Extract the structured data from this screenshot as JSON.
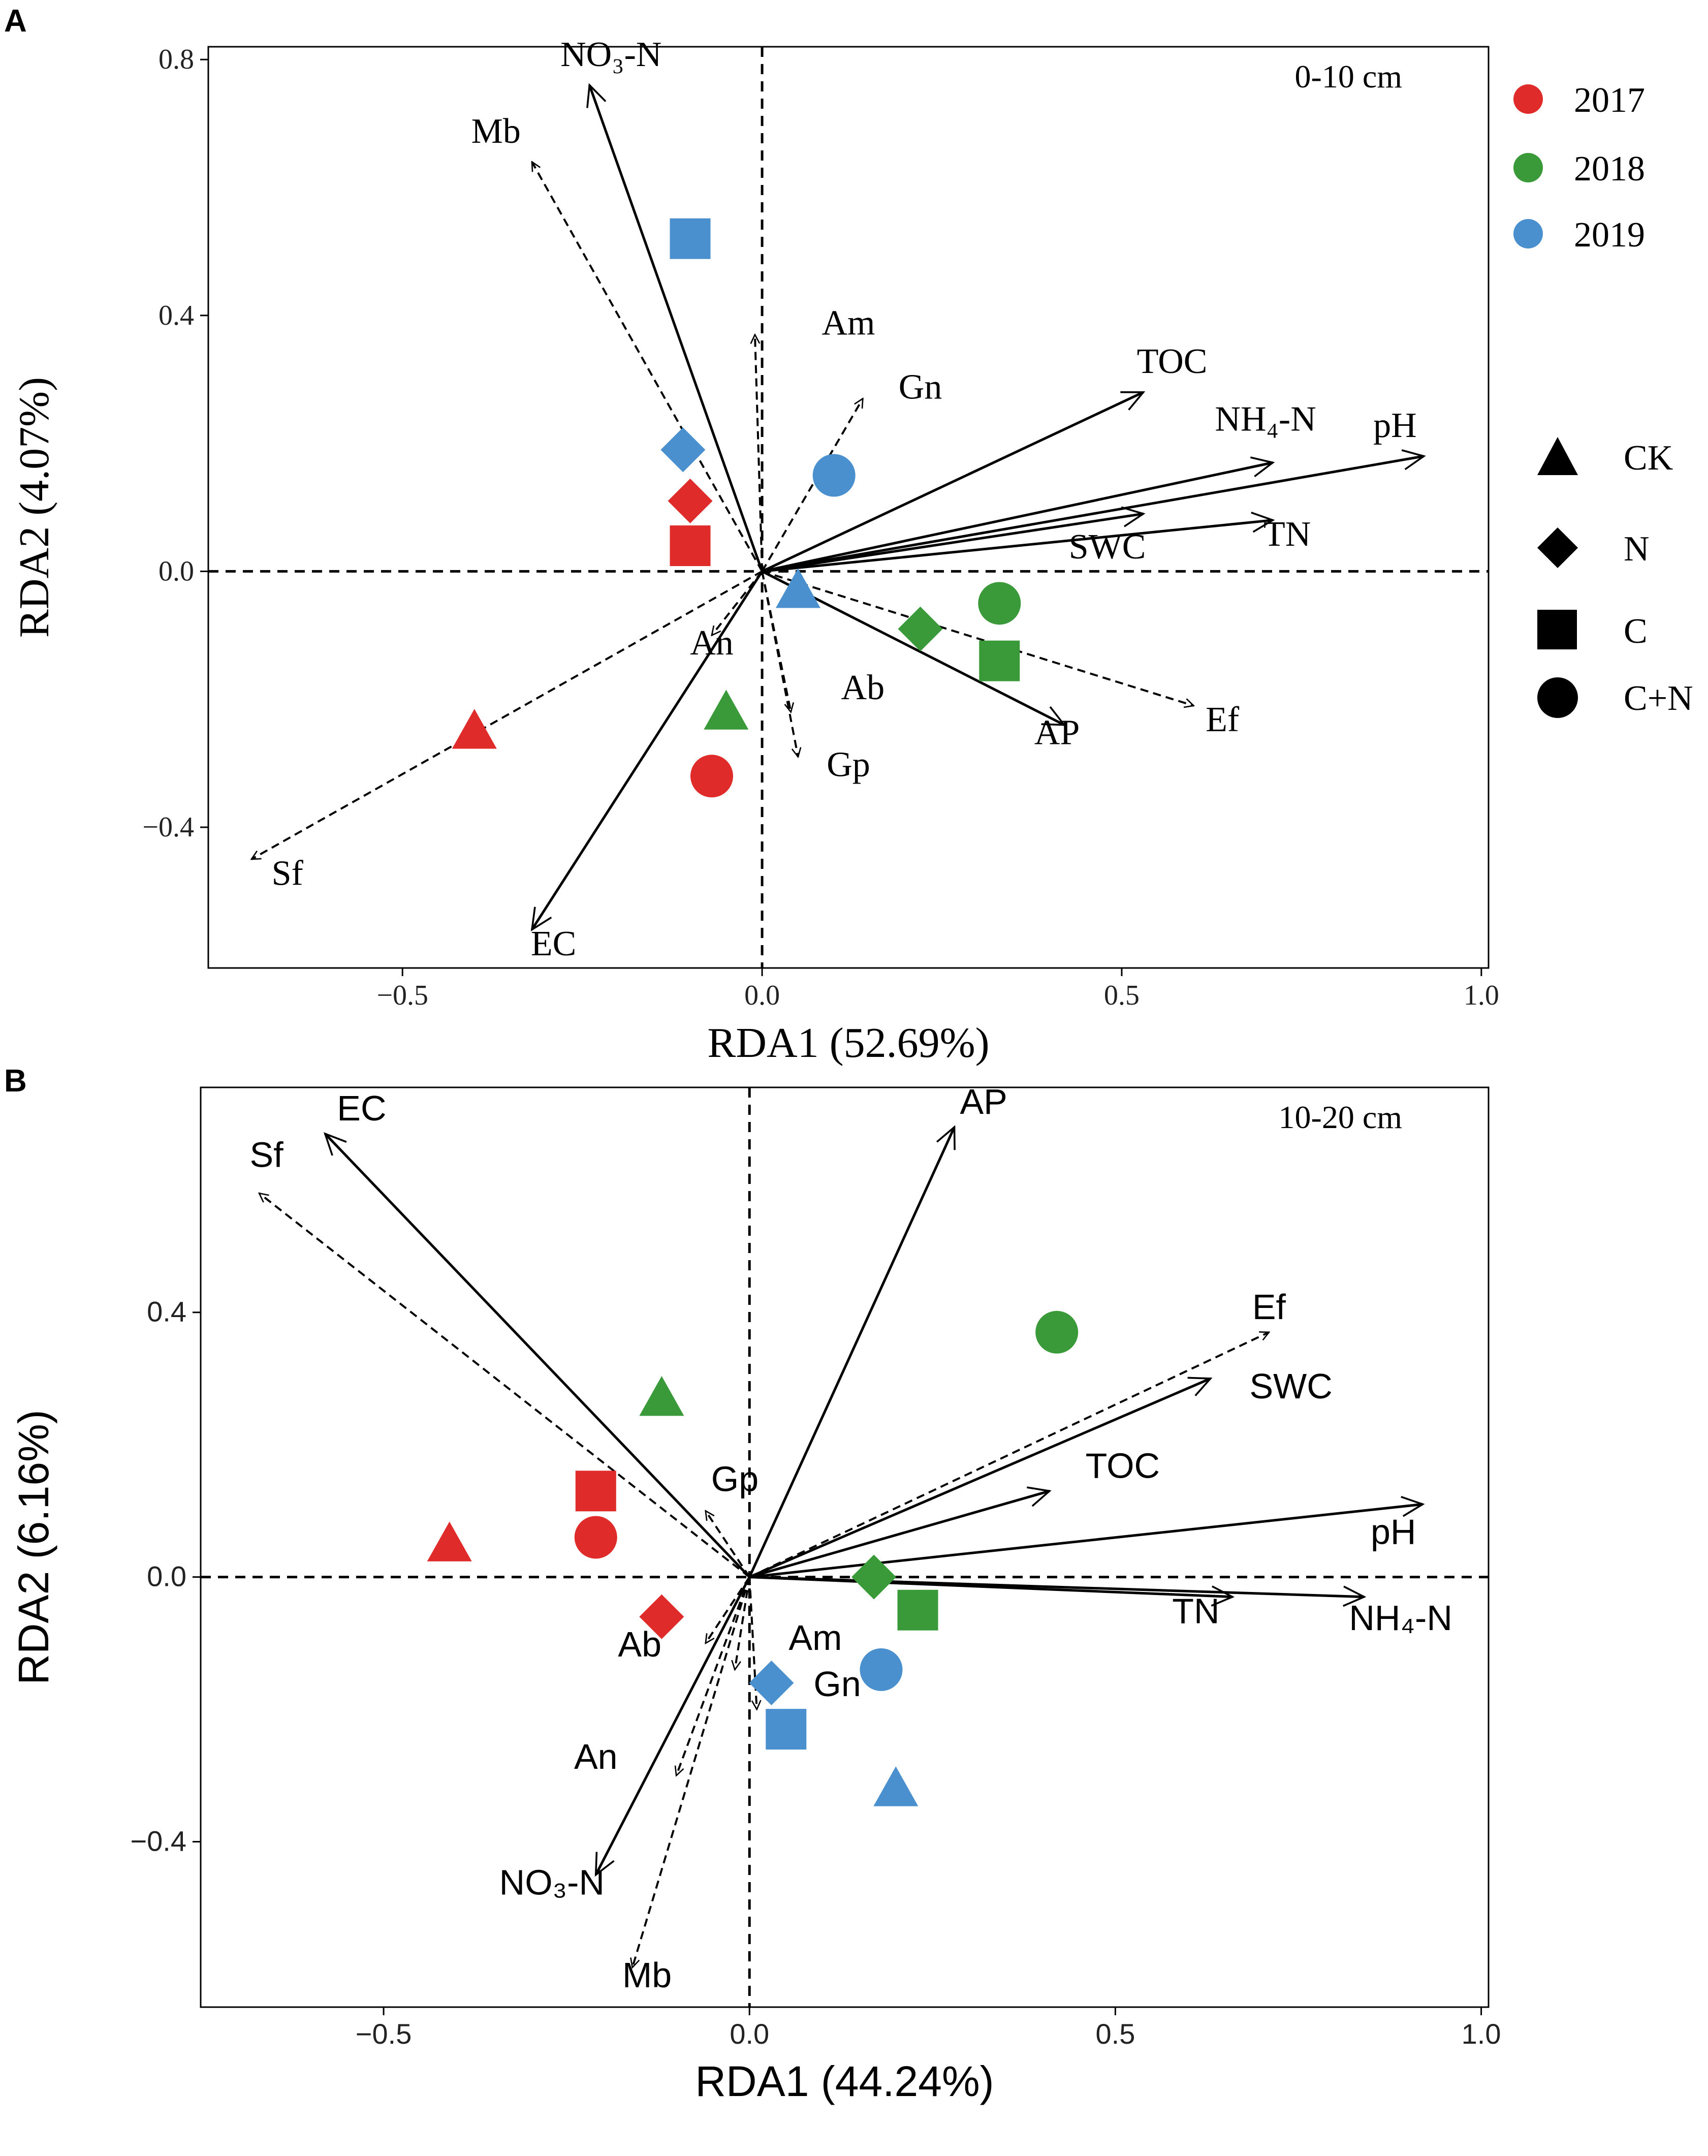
{
  "colors": {
    "y2017": "#e02b2b",
    "y2018": "#3a9a3a",
    "y2019": "#4a90cf",
    "axis": "#000000"
  },
  "legend": {
    "years": [
      {
        "label": "2017",
        "color": "#e02b2b"
      },
      {
        "label": "2018",
        "color": "#3a9a3a"
      },
      {
        "label": "2019",
        "color": "#4a90cf"
      }
    ],
    "treatments": [
      {
        "label": "CK",
        "shape": "triangle-icon"
      },
      {
        "label": "N",
        "shape": "diamond-icon"
      },
      {
        "label": "C",
        "shape": "square-icon"
      },
      {
        "label": "C+N",
        "shape": "circle-icon"
      }
    ]
  },
  "chart_data": [
    {
      "type": "scatter",
      "panel_label": "A",
      "depth_label": "0-10 cm",
      "xlabel": "RDA1 (52.69%)",
      "ylabel": "RDA2 (4.07%)",
      "xlim": [
        -0.77,
        1.01
      ],
      "ylim": [
        -0.62,
        0.82
      ],
      "xticks": [
        {
          "value": -0.5,
          "label": "−0.5"
        },
        {
          "value": 0.0,
          "label": "0.0"
        },
        {
          "value": 0.5,
          "label": "0.5"
        },
        {
          "value": 1.0,
          "label": "1.0"
        }
      ],
      "yticks": [
        {
          "value": -0.4,
          "label": "−0.4"
        },
        {
          "value": 0.0,
          "label": "0.0"
        },
        {
          "value": 0.4,
          "label": "0.4"
        },
        {
          "value": 0.8,
          "label": "0.8"
        }
      ],
      "arrows": [
        {
          "name": "NO3-N",
          "label": "NO₃-N",
          "x": -0.24,
          "y": 0.76,
          "style": "solid",
          "lx": -0.21,
          "ly": 0.79
        },
        {
          "name": "TOC",
          "label": "TOC",
          "x": 0.53,
          "y": 0.28,
          "style": "solid",
          "lx": 0.57,
          "ly": 0.31
        },
        {
          "name": "NH4-N",
          "label": "NH₄-N",
          "x": 0.71,
          "y": 0.17,
          "style": "solid",
          "lx": 0.7,
          "ly": 0.22
        },
        {
          "name": "pH",
          "label": "pH",
          "x": 0.92,
          "y": 0.18,
          "style": "solid",
          "lx": 0.88,
          "ly": 0.21
        },
        {
          "name": "TN",
          "label": "TN",
          "x": 0.71,
          "y": 0.08,
          "style": "solid",
          "lx": 0.73,
          "ly": 0.04
        },
        {
          "name": "SWC",
          "label": "SWC",
          "x": 0.53,
          "y": 0.09,
          "style": "solid",
          "lx": 0.48,
          "ly": 0.02
        },
        {
          "name": "AP",
          "label": "AP",
          "x": 0.42,
          "y": -0.24,
          "style": "solid",
          "lx": 0.41,
          "ly": -0.27
        },
        {
          "name": "EC",
          "label": "EC",
          "x": -0.32,
          "y": -0.56,
          "style": "solid",
          "lx": -0.29,
          "ly": -0.6
        },
        {
          "name": "Mb",
          "label": "Mb",
          "x": -0.32,
          "y": 0.64,
          "style": "dashed",
          "lx": -0.37,
          "ly": 0.67
        },
        {
          "name": "Am",
          "label": "Am",
          "x": -0.01,
          "y": 0.37,
          "style": "dashed",
          "lx": 0.12,
          "ly": 0.37
        },
        {
          "name": "Gn",
          "label": "Gn",
          "x": 0.14,
          "y": 0.27,
          "style": "dashed",
          "lx": 0.22,
          "ly": 0.27
        },
        {
          "name": "An",
          "label": "An",
          "x": -0.07,
          "y": -0.1,
          "style": "dashed",
          "lx": -0.07,
          "ly": -0.13
        },
        {
          "name": "Ab",
          "label": "Ab",
          "x": 0.04,
          "y": -0.22,
          "style": "dashed",
          "lx": 0.14,
          "ly": -0.2
        },
        {
          "name": "Gp",
          "label": "Gp",
          "x": 0.05,
          "y": -0.29,
          "style": "dashed",
          "lx": 0.12,
          "ly": -0.32
        },
        {
          "name": "Ef",
          "label": "Ef",
          "x": 0.6,
          "y": -0.21,
          "style": "dashed",
          "lx": 0.64,
          "ly": -0.25
        },
        {
          "name": "Sf",
          "label": "Sf",
          "x": -0.71,
          "y": -0.45,
          "style": "dashed",
          "lx": -0.66,
          "ly": -0.49
        }
      ],
      "points": [
        {
          "year": "2017",
          "treatment": "CK",
          "x": -0.4,
          "y": -0.25
        },
        {
          "year": "2017",
          "treatment": "N",
          "x": -0.1,
          "y": 0.11
        },
        {
          "year": "2017",
          "treatment": "C",
          "x": -0.1,
          "y": 0.04
        },
        {
          "year": "2017",
          "treatment": "C+N",
          "x": -0.07,
          "y": -0.32
        },
        {
          "year": "2018",
          "treatment": "CK",
          "x": -0.05,
          "y": -0.22
        },
        {
          "year": "2018",
          "treatment": "N",
          "x": 0.22,
          "y": -0.09
        },
        {
          "year": "2018",
          "treatment": "C",
          "x": 0.33,
          "y": -0.14
        },
        {
          "year": "2018",
          "treatment": "C+N",
          "x": 0.33,
          "y": -0.05
        },
        {
          "year": "2019",
          "treatment": "CK",
          "x": 0.05,
          "y": -0.03
        },
        {
          "year": "2019",
          "treatment": "N",
          "x": -0.11,
          "y": 0.19
        },
        {
          "year": "2019",
          "treatment": "C",
          "x": -0.1,
          "y": 0.52
        },
        {
          "year": "2019",
          "treatment": "C+N",
          "x": 0.1,
          "y": 0.15
        }
      ]
    },
    {
      "type": "scatter",
      "panel_label": "B",
      "depth_label": "10-20 cm",
      "xlabel": "RDA1 (44.24%)",
      "ylabel": "RDA2 (6.16%)",
      "xlim": [
        -0.75,
        1.01
      ],
      "ylim": [
        -0.65,
        0.74
      ],
      "xticks": [
        {
          "value": -0.5,
          "label": "−0.5"
        },
        {
          "value": 0.0,
          "label": "0.0"
        },
        {
          "value": 0.5,
          "label": "0.5"
        },
        {
          "value": 1.0,
          "label": "1.0"
        }
      ],
      "yticks": [
        {
          "value": -0.4,
          "label": "−0.4"
        },
        {
          "value": 0.0,
          "label": "0.0"
        },
        {
          "value": 0.4,
          "label": "0.4"
        }
      ],
      "arrows": [
        {
          "name": "EC",
          "label": "EC",
          "x": -0.58,
          "y": 0.67,
          "style": "solid",
          "lx": -0.53,
          "ly": 0.69
        },
        {
          "name": "AP",
          "label": "AP",
          "x": 0.28,
          "y": 0.68,
          "style": "solid",
          "lx": 0.32,
          "ly": 0.7
        },
        {
          "name": "SWC",
          "label": "SWC",
          "x": 0.63,
          "y": 0.3,
          "style": "solid",
          "lx": 0.74,
          "ly": 0.27
        },
        {
          "name": "TOC",
          "label": "TOC",
          "x": 0.41,
          "y": 0.13,
          "style": "solid",
          "lx": 0.51,
          "ly": 0.15
        },
        {
          "name": "pH",
          "label": "pH",
          "x": 0.92,
          "y": 0.11,
          "style": "solid",
          "lx": 0.88,
          "ly": 0.05
        },
        {
          "name": "TN",
          "label": "TN",
          "x": 0.66,
          "y": -0.03,
          "style": "solid",
          "lx": 0.61,
          "ly": -0.07
        },
        {
          "name": "NH4-N",
          "label": "NH₄-N",
          "x": 0.84,
          "y": -0.03,
          "style": "solid",
          "lx": 0.89,
          "ly": -0.08
        },
        {
          "name": "NO3-N",
          "label": "NO₃-N",
          "x": -0.21,
          "y": -0.45,
          "style": "solid",
          "lx": -0.27,
          "ly": -0.48
        },
        {
          "name": "Sf",
          "label": "Sf",
          "x": -0.67,
          "y": 0.58,
          "style": "dashed",
          "lx": -0.66,
          "ly": 0.62
        },
        {
          "name": "Ef",
          "label": "Ef",
          "x": 0.71,
          "y": 0.37,
          "style": "dashed",
          "lx": 0.71,
          "ly": 0.39
        },
        {
          "name": "Gp",
          "label": "Gp",
          "x": -0.06,
          "y": 0.1,
          "style": "dashed",
          "lx": -0.02,
          "ly": 0.13
        },
        {
          "name": "Ab",
          "label": "Ab",
          "x": -0.06,
          "y": -0.1,
          "style": "dashed",
          "lx": -0.15,
          "ly": -0.12
        },
        {
          "name": "Am",
          "label": "Am",
          "x": -0.02,
          "y": -0.14,
          "style": "dashed",
          "lx": 0.09,
          "ly": -0.11
        },
        {
          "name": "Gn",
          "label": "Gn",
          "x": 0.01,
          "y": -0.2,
          "style": "dashed",
          "lx": 0.12,
          "ly": -0.18
        },
        {
          "name": "An",
          "label": "An",
          "x": -0.1,
          "y": -0.3,
          "style": "dashed",
          "lx": -0.21,
          "ly": -0.29
        },
        {
          "name": "Mb",
          "label": "Mb",
          "x": -0.16,
          "y": -0.59,
          "style": "dashed",
          "lx": -0.14,
          "ly": -0.62
        }
      ],
      "points": [
        {
          "year": "2017",
          "treatment": "CK",
          "x": -0.41,
          "y": 0.05
        },
        {
          "year": "2017",
          "treatment": "N",
          "x": -0.12,
          "y": -0.06
        },
        {
          "year": "2017",
          "treatment": "C",
          "x": -0.21,
          "y": 0.13
        },
        {
          "year": "2017",
          "treatment": "C+N",
          "x": -0.21,
          "y": 0.06
        },
        {
          "year": "2018",
          "treatment": "CK",
          "x": -0.12,
          "y": 0.27
        },
        {
          "year": "2018",
          "treatment": "N",
          "x": 0.17,
          "y": 0.0
        },
        {
          "year": "2018",
          "treatment": "C",
          "x": 0.23,
          "y": -0.05
        },
        {
          "year": "2018",
          "treatment": "C+N",
          "x": 0.42,
          "y": 0.37
        },
        {
          "year": "2019",
          "treatment": "CK",
          "x": 0.2,
          "y": -0.32
        },
        {
          "year": "2019",
          "treatment": "N",
          "x": 0.03,
          "y": -0.16
        },
        {
          "year": "2019",
          "treatment": "C",
          "x": 0.05,
          "y": -0.23
        },
        {
          "year": "2019",
          "treatment": "C+N",
          "x": 0.18,
          "y": -0.14
        }
      ]
    }
  ]
}
